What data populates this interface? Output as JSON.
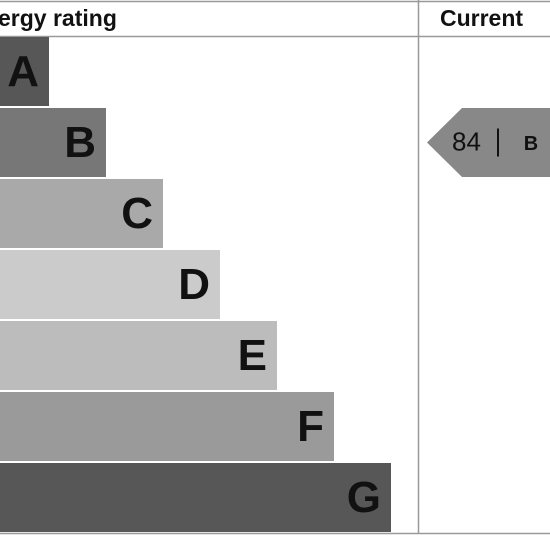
{
  "header": {
    "title": "ergy rating",
    "current": "Current"
  },
  "bands": [
    {
      "letter": "A",
      "color": "#575757"
    },
    {
      "letter": "B",
      "color": "#777777"
    },
    {
      "letter": "C",
      "color": "#a9a9a9"
    },
    {
      "letter": "D",
      "color": "#cbcbcb"
    },
    {
      "letter": "E",
      "color": "#bcbcbc"
    },
    {
      "letter": "F",
      "color": "#9a9a9a"
    },
    {
      "letter": "G",
      "color": "#575757"
    }
  ],
  "current": {
    "value": 84,
    "letter": "B",
    "color": "#888888"
  }
}
